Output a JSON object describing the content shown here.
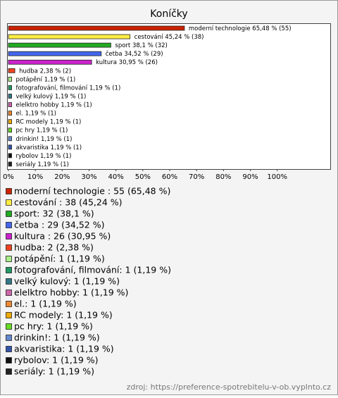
{
  "chart_data": {
    "type": "bar",
    "orientation": "horizontal",
    "title": "Koníčky",
    "categories": [
      "moderní technologie",
      "cestování",
      "sport",
      "četba",
      "kultura",
      "hudba",
      "potápění",
      "fotografování, filmování",
      "velký kulový",
      "elelktro hobby",
      "el.",
      "RC modely",
      "pc hry",
      "drinkin!",
      "akvaristika",
      "rybolov",
      "seriály"
    ],
    "values": [
      65.48,
      45.24,
      38.1,
      34.52,
      30.95,
      2.38,
      1.19,
      1.19,
      1.19,
      1.19,
      1.19,
      1.19,
      1.19,
      1.19,
      1.19,
      1.19,
      1.19
    ],
    "value_labels": [
      "65,48 % (55)",
      "45,24 % (38)",
      "38,1 % (32)",
      "34,52 % (29)",
      "30,95 % (26)",
      "2,38 % (2)",
      "1,19 % (1)",
      "1,19 % (1)",
      "1,19 % (1)",
      "1,19 % (1)",
      "1,19 % (1)",
      "1,19 % (1)",
      "1,19 % (1)",
      "1,19 % (1)",
      "1,19 % (1)",
      "1,19 % (1)",
      "1,19 % (1)"
    ],
    "colors": [
      "#cc2200",
      "#ffee44",
      "#22aa22",
      "#4466ee",
      "#cc22cc",
      "#ee4422",
      "#aaee88",
      "#229966",
      "#337788",
      "#cc66aa",
      "#ee8833",
      "#eeaa00",
      "#66dd22",
      "#6688cc",
      "#3355aa",
      "#111111",
      "#222222"
    ],
    "legend_labels": [
      "moderní technologie : 55 (65,48 %)",
      "cestování : 38 (45,24 %)",
      "sport: 32 (38,1 %)",
      "četba : 29 (34,52 %)",
      "kultura : 26 (30,95 %)",
      "hudba: 2 (2,38 %)",
      "potápění: 1 (1,19 %)",
      "fotografování, filmování: 1 (1,19 %)",
      "velký kulový: 1 (1,19 %)",
      "elelktro hobby: 1 (1,19 %)",
      "el.: 1 (1,19 %)",
      "RC modely: 1 (1,19 %)",
      "pc hry: 1 (1,19 %)",
      "drinkin!: 1 (1,19 %)",
      "akvaristika: 1 (1,19 %)",
      "rybolov: 1 (1,19 %)",
      "seriály: 1 (1,19 %)"
    ],
    "xlim": [
      0,
      120
    ],
    "xticks": [
      {
        "value": 0,
        "label": "0%"
      },
      {
        "value": 10,
        "label": "10%"
      },
      {
        "value": 20,
        "label": "20%"
      },
      {
        "value": 30,
        "label": "30%"
      },
      {
        "value": 40,
        "label": "40%"
      },
      {
        "value": 50,
        "label": "50%"
      },
      {
        "value": 60,
        "label": "60%"
      },
      {
        "value": 70,
        "label": "70%"
      },
      {
        "value": 80,
        "label": "80%"
      },
      {
        "value": 90,
        "label": "90%"
      },
      {
        "value": 100,
        "label": "100%"
      }
    ],
    "source": "zdroj: https://preference-spotrebitelu-v-ob.vyplnto.cz"
  }
}
